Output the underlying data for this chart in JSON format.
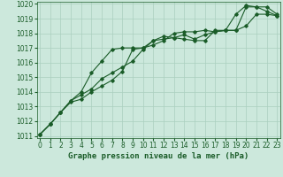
{
  "title": "Graphe pression niveau de la mer (hPa)",
  "x": [
    0,
    1,
    2,
    3,
    4,
    5,
    6,
    7,
    8,
    9,
    10,
    11,
    12,
    13,
    14,
    15,
    16,
    17,
    18,
    19,
    20,
    21,
    22,
    23
  ],
  "line1": [
    1011.1,
    1011.8,
    1012.6,
    1013.4,
    1013.8,
    1014.2,
    1014.9,
    1015.3,
    1015.7,
    1016.1,
    1016.9,
    1017.5,
    1017.8,
    1017.7,
    1017.9,
    1017.6,
    1017.9,
    1018.1,
    1018.2,
    1019.3,
    1019.9,
    1019.8,
    1019.5,
    1019.2
  ],
  "line2": [
    1011.1,
    1011.8,
    1012.6,
    1013.3,
    1013.5,
    1014.0,
    1014.4,
    1014.8,
    1015.4,
    1016.9,
    1017.0,
    1017.2,
    1017.5,
    1018.0,
    1018.1,
    1018.1,
    1018.2,
    1018.1,
    1018.2,
    1018.2,
    1019.8,
    1019.8,
    1019.8,
    1019.3
  ],
  "line3": [
    1011.1,
    1011.8,
    1012.6,
    1013.4,
    1014.0,
    1015.3,
    1016.1,
    1016.9,
    1017.0,
    1017.0,
    1017.0,
    1017.5,
    1017.6,
    1017.7,
    1017.6,
    1017.5,
    1017.5,
    1018.2,
    1018.2,
    1018.2,
    1018.5,
    1019.3,
    1019.3,
    1019.2
  ],
  "ylim_min": 1011,
  "ylim_max": 1020,
  "yticks": [
    1011,
    1012,
    1013,
    1014,
    1015,
    1016,
    1017,
    1018,
    1019,
    1020
  ],
  "xticks": [
    0,
    1,
    2,
    3,
    4,
    5,
    6,
    7,
    8,
    9,
    10,
    11,
    12,
    13,
    14,
    15,
    16,
    17,
    18,
    19,
    20,
    21,
    22,
    23
  ],
  "bg_color": "#cce8dc",
  "grid_color": "#aacfbf",
  "line_color": "#1a5c28",
  "marker": "D",
  "marker_size": 1.8,
  "line_width": 0.8,
  "title_fontsize": 6.5,
  "tick_fontsize": 5.5,
  "fig_width": 3.2,
  "fig_height": 2.0,
  "dpi": 100
}
